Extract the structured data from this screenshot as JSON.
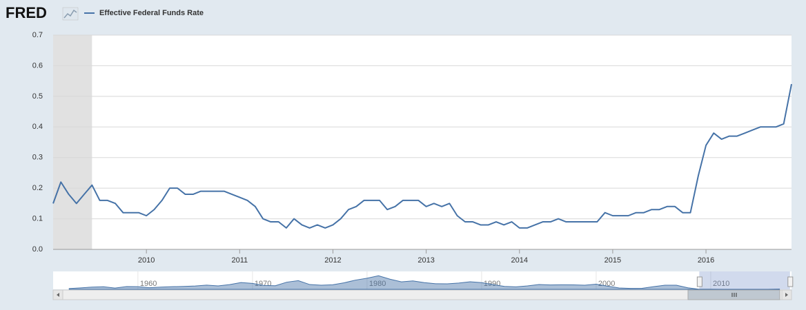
{
  "chart_data": {
    "type": "line",
    "brand": "FRED",
    "x": [
      2009.0,
      2009.083,
      2009.167,
      2009.25,
      2009.333,
      2009.417,
      2009.5,
      2009.583,
      2009.667,
      2009.75,
      2009.833,
      2009.917,
      2010.0,
      2010.083,
      2010.167,
      2010.25,
      2010.333,
      2010.417,
      2010.5,
      2010.583,
      2010.667,
      2010.75,
      2010.833,
      2010.917,
      2011.0,
      2011.083,
      2011.167,
      2011.25,
      2011.333,
      2011.417,
      2011.5,
      2011.583,
      2011.667,
      2011.75,
      2011.833,
      2011.917,
      2012.0,
      2012.083,
      2012.167,
      2012.25,
      2012.333,
      2012.417,
      2012.5,
      2012.583,
      2012.667,
      2012.75,
      2012.833,
      2012.917,
      2013.0,
      2013.083,
      2013.167,
      2013.25,
      2013.333,
      2013.417,
      2013.5,
      2013.583,
      2013.667,
      2013.75,
      2013.833,
      2013.917,
      2014.0,
      2014.083,
      2014.167,
      2014.25,
      2014.333,
      2014.417,
      2014.5,
      2014.583,
      2014.667,
      2014.75,
      2014.833,
      2014.917,
      2015.0,
      2015.083,
      2015.167,
      2015.25,
      2015.333,
      2015.417,
      2015.5,
      2015.583,
      2015.667,
      2015.75,
      2015.833,
      2015.917,
      2016.0,
      2016.083,
      2016.167,
      2016.25,
      2016.333,
      2016.417,
      2016.5,
      2016.583,
      2016.667,
      2016.75,
      2016.833,
      2016.917
    ],
    "series": [
      {
        "name": "Effective Federal Funds Rate",
        "color": "#4572a7",
        "values": [
          0.15,
          0.22,
          0.18,
          0.15,
          0.18,
          0.21,
          0.16,
          0.16,
          0.15,
          0.12,
          0.12,
          0.12,
          0.11,
          0.13,
          0.16,
          0.2,
          0.2,
          0.18,
          0.18,
          0.19,
          0.19,
          0.19,
          0.19,
          0.18,
          0.17,
          0.16,
          0.14,
          0.1,
          0.09,
          0.09,
          0.07,
          0.1,
          0.08,
          0.07,
          0.08,
          0.07,
          0.08,
          0.1,
          0.13,
          0.14,
          0.16,
          0.16,
          0.16,
          0.13,
          0.14,
          0.16,
          0.16,
          0.16,
          0.14,
          0.15,
          0.14,
          0.15,
          0.11,
          0.09,
          0.09,
          0.08,
          0.08,
          0.09,
          0.08,
          0.09,
          0.07,
          0.07,
          0.08,
          0.09,
          0.09,
          0.1,
          0.09,
          0.09,
          0.09,
          0.09,
          0.09,
          0.12,
          0.11,
          0.11,
          0.11,
          0.12,
          0.12,
          0.13,
          0.13,
          0.14,
          0.14,
          0.12,
          0.12,
          0.24,
          0.34,
          0.38,
          0.36,
          0.37,
          0.37,
          0.38,
          0.39,
          0.4,
          0.4,
          0.4,
          0.41,
          0.54
        ]
      }
    ],
    "xlim": [
      2009.0,
      2016.917
    ],
    "xticks": [
      2010,
      2011,
      2012,
      2013,
      2014,
      2015,
      2016
    ],
    "ylim": [
      0,
      0.7
    ],
    "yticks": [
      {
        "value": 0,
        "label": "0.0"
      },
      0.1,
      0.2,
      0.3,
      0.4,
      0.5,
      0.6,
      0.7
    ],
    "grid": true,
    "shaded_ranges": [
      [
        2009.0,
        2009.417
      ]
    ],
    "navigator": {
      "x": [
        1954,
        1955,
        1956,
        1957,
        1958,
        1959,
        1960,
        1961,
        1962,
        1963,
        1964,
        1965,
        1966,
        1967,
        1968,
        1969,
        1970,
        1971,
        1972,
        1973,
        1974,
        1975,
        1976,
        1977,
        1978,
        1979,
        1980,
        1981,
        1982,
        1983,
        1984,
        1985,
        1986,
        1987,
        1988,
        1989,
        1990,
        1991,
        1992,
        1993,
        1994,
        1995,
        1996,
        1997,
        1998,
        1999,
        2000,
        2001,
        2002,
        2003,
        2004,
        2005,
        2006,
        2007,
        2008,
        2009,
        2010,
        2011,
        2012,
        2013,
        2014,
        2015,
        2016
      ],
      "values": [
        1.0,
        1.8,
        2.7,
        3.1,
        1.6,
        3.3,
        3.2,
        2.0,
        2.7,
        3.2,
        3.5,
        4.1,
        5.1,
        4.2,
        5.7,
        8.2,
        7.2,
        4.7,
        4.4,
        8.7,
        10.5,
        5.8,
        5.0,
        5.5,
        7.9,
        11.2,
        13.4,
        16.4,
        12.3,
        9.1,
        10.2,
        8.1,
        6.8,
        6.7,
        7.6,
        9.2,
        8.1,
        5.7,
        3.5,
        3.0,
        4.2,
        5.8,
        5.3,
        5.5,
        5.4,
        5.0,
        6.2,
        3.9,
        1.7,
        1.1,
        1.3,
        3.2,
        5.0,
        5.0,
        1.9,
        0.16,
        0.18,
        0.1,
        0.14,
        0.11,
        0.09,
        0.13,
        0.4
      ],
      "xlim": [
        1952.6,
        2017.05
      ],
      "ylim": [
        0,
        20
      ],
      "xticks": [
        1960,
        1970,
        1980,
        1990,
        2000,
        2010
      ],
      "selected": [
        2009.0,
        2016.917
      ]
    }
  }
}
